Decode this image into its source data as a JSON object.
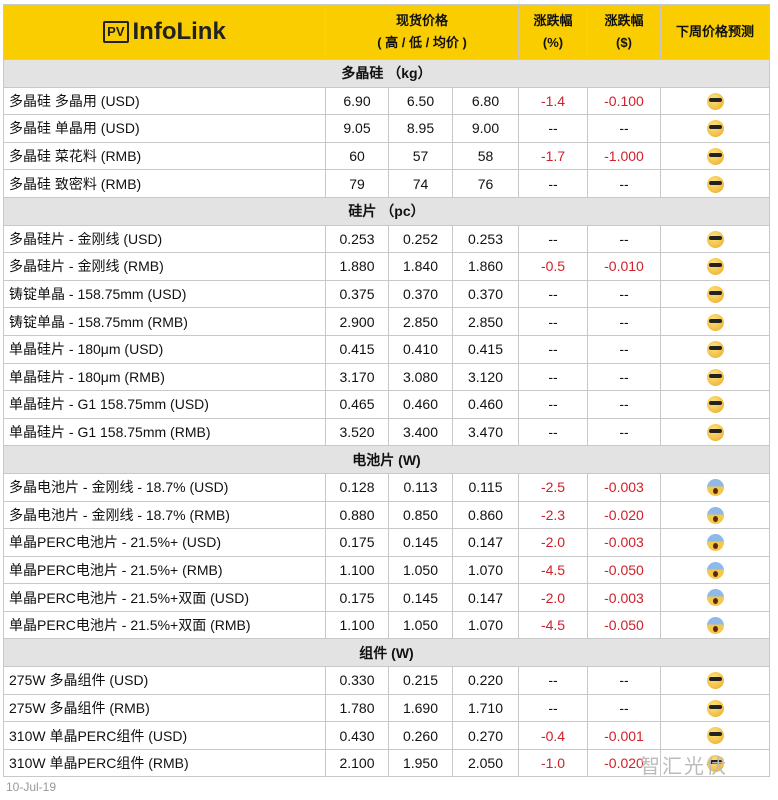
{
  "header": {
    "logo": "InfoLink",
    "logo_badge": "PV",
    "price": "现货价格",
    "price_sub": "( 高 / 低 / 均价 )",
    "pct": "涨跌幅",
    "pct_unit": "(%)",
    "usd": "涨跌幅",
    "usd_unit": "($)",
    "forecast": "下周价格预测"
  },
  "sections": [
    {
      "title": "多晶硅 （kg）",
      "rows": [
        [
          "多晶硅 多晶用 (USD)",
          "6.90",
          "6.50",
          "6.80",
          "-1.4",
          "-0.100",
          "cool"
        ],
        [
          "多晶硅 单晶用 (USD)",
          "9.05",
          "8.95",
          "9.00",
          "--",
          "--",
          "cool"
        ],
        [
          "多晶硅 菜花料 (RMB)",
          "60",
          "57",
          "58",
          "-1.7",
          "-1.000",
          "cool"
        ],
        [
          "多晶硅 致密料 (RMB)",
          "79",
          "74",
          "76",
          "--",
          "--",
          "cool"
        ]
      ]
    },
    {
      "title": "硅片 （pc）",
      "rows": [
        [
          "多晶硅片 - 金刚线 (USD)",
          "0.253",
          "0.252",
          "0.253",
          "--",
          "--",
          "cool"
        ],
        [
          "多晶硅片 - 金刚线 (RMB)",
          "1.880",
          "1.840",
          "1.860",
          "-0.5",
          "-0.010",
          "cool"
        ],
        [
          "铸锭单晶 - 158.75mm (USD)",
          "0.375",
          "0.370",
          "0.370",
          "--",
          "--",
          "cool"
        ],
        [
          "铸锭单晶 - 158.75mm (RMB)",
          "2.900",
          "2.850",
          "2.850",
          "--",
          "--",
          "cool"
        ],
        [
          "单晶硅片 - 180μm (USD)",
          "0.415",
          "0.410",
          "0.415",
          "--",
          "--",
          "cool"
        ],
        [
          "单晶硅片 - 180μm (RMB)",
          "3.170",
          "3.080",
          "3.120",
          "--",
          "--",
          "cool"
        ],
        [
          "单晶硅片 - G1 158.75mm (USD)",
          "0.465",
          "0.460",
          "0.460",
          "--",
          "--",
          "cool"
        ],
        [
          "单晶硅片 - G1 158.75mm (RMB)",
          "3.520",
          "3.400",
          "3.470",
          "--",
          "--",
          "cool"
        ]
      ]
    },
    {
      "title": "电池片 (W)",
      "rows": [
        [
          "多晶电池片 - 金刚线 - 18.7% (USD)",
          "0.128",
          "0.113",
          "0.115",
          "-2.5",
          "-0.003",
          "scream"
        ],
        [
          "多晶电池片 - 金刚线 - 18.7% (RMB)",
          "0.880",
          "0.850",
          "0.860",
          "-2.3",
          "-0.020",
          "scream"
        ],
        [
          "单晶PERC电池片 - 21.5%+ (USD)",
          "0.175",
          "0.145",
          "0.147",
          "-2.0",
          "-0.003",
          "scream"
        ],
        [
          "单晶PERC电池片 - 21.5%+ (RMB)",
          "1.100",
          "1.050",
          "1.070",
          "-4.5",
          "-0.050",
          "scream"
        ],
        [
          "单晶PERC电池片 - 21.5%+双面 (USD)",
          "0.175",
          "0.145",
          "0.147",
          "-2.0",
          "-0.003",
          "scream"
        ],
        [
          "单晶PERC电池片 - 21.5%+双面 (RMB)",
          "1.100",
          "1.050",
          "1.070",
          "-4.5",
          "-0.050",
          "scream"
        ]
      ]
    },
    {
      "title": "组件 (W)",
      "rows": [
        [
          "275W 多晶组件 (USD)",
          "0.330",
          "0.215",
          "0.220",
          "--",
          "--",
          "cool"
        ],
        [
          "275W 多晶组件 (RMB)",
          "1.780",
          "1.690",
          "1.710",
          "--",
          "--",
          "cool"
        ],
        [
          "310W 单晶PERC组件 (USD)",
          "0.430",
          "0.260",
          "0.270",
          "-0.4",
          "-0.001",
          "cool"
        ],
        [
          "310W 单晶PERC组件 (RMB)",
          "2.100",
          "1.950",
          "2.050",
          "-1.0",
          "-0.020",
          "cool"
        ]
      ]
    }
  ],
  "colors": {
    "header_bg": "#f9cd00",
    "section_bg": "#e3e3e3",
    "negative": "#d0202a"
  },
  "footer": {
    "date": "10-Jul-19",
    "watermark": "智汇光伏"
  }
}
